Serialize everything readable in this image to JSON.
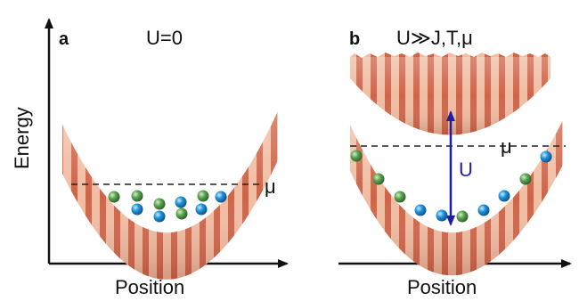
{
  "axis": {
    "y_label": "Energy",
    "x_label_left": "Position",
    "x_label_right": "Position"
  },
  "panel_a": {
    "letter": "a",
    "title": "U=0",
    "mu": "μ",
    "atoms": [
      "green",
      "green",
      "green",
      "green",
      "blue",
      "blue",
      "blue",
      "blue",
      "green",
      "blue",
      "blue"
    ]
  },
  "panel_b": {
    "letter": "b",
    "title": "U≫J,T,μ",
    "mu": "μ",
    "gap_label": "U",
    "atoms": [
      "green",
      "green",
      "green",
      "blue",
      "blue",
      "green",
      "blue",
      "blue",
      "green",
      "blue"
    ]
  },
  "colors": {
    "band_dark": "#c9553a",
    "band_light": "#f3c9b2",
    "atom_green": "#4f9a4a",
    "atom_blue": "#1d8fd8",
    "arrow": "#1f1f9e",
    "axis": "#111111"
  }
}
